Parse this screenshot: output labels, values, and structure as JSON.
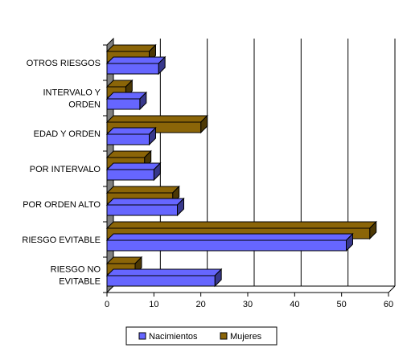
{
  "chart_data": {
    "type": "bar",
    "orientation": "horizontal",
    "style": "3d",
    "categories": [
      "RIESGO NO EVITABLE",
      "RIESGO EVITABLE",
      "POR ORDEN ALTO",
      "POR INTERVALO",
      "EDAD Y ORDEN",
      "INTERVALO Y ORDEN",
      "OTROS RIESGOS"
    ],
    "category_label_lines": [
      [
        "RIESGO NO",
        "EVITABLE"
      ],
      [
        "RIESGO EVITABLE"
      ],
      [
        "POR ORDEN ALTO"
      ],
      [
        "POR INTERVALO"
      ],
      [
        "EDAD Y ORDEN"
      ],
      [
        "INTERVALO Y",
        "ORDEN"
      ],
      [
        "OTROS RIESGOS"
      ]
    ],
    "series": [
      {
        "name": "Nacimientos",
        "color": "#6666ff",
        "values": [
          23,
          51,
          15,
          10,
          9,
          7,
          11
        ]
      },
      {
        "name": "Mujeres",
        "color": "#8b6508",
        "values": [
          6,
          56,
          14,
          8,
          20,
          4,
          9
        ]
      }
    ],
    "xlim": [
      0,
      60
    ],
    "xticks": [
      "0",
      "10",
      "20",
      "30",
      "40",
      "50",
      "60"
    ],
    "grid": true,
    "legend_position": "bottom-center"
  }
}
